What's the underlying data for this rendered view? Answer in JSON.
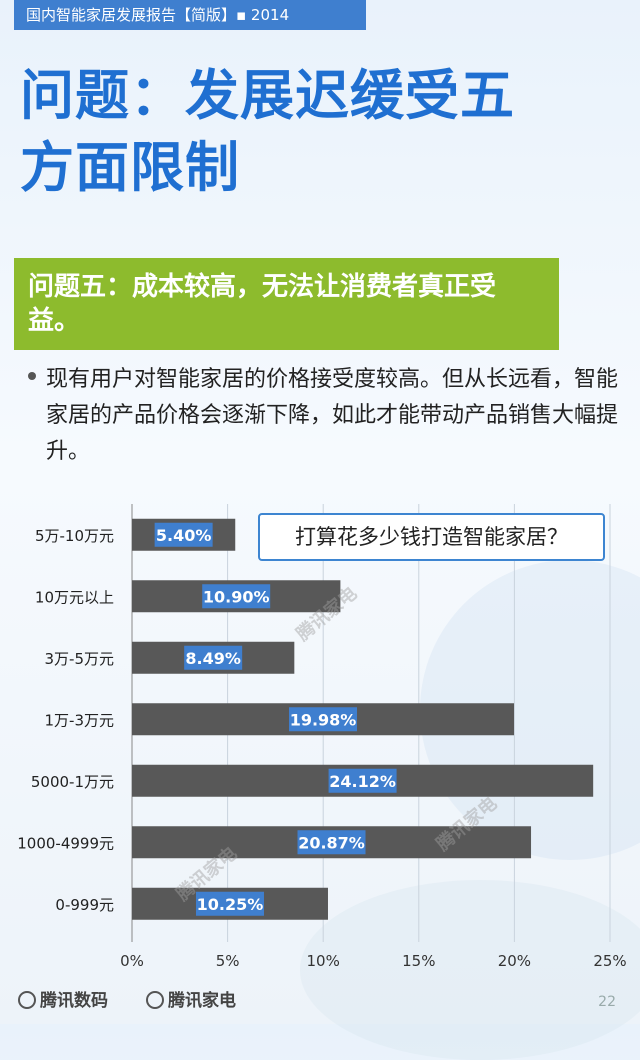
{
  "header": {
    "report_title": "国内智能家居发展报告【简版】▪ 2014"
  },
  "title": {
    "line1": "问题：发展迟缓受五",
    "line2": "方面限制"
  },
  "issue": {
    "text": "问题五：成本较高，无法让消费者真正受益。"
  },
  "bullet": {
    "text": "现有用户对智能家居的价格接受度较高。但从长远看，智能家居的产品价格会逐渐下降，如此才能带动产品销售大幅提升。"
  },
  "chart_data": {
    "type": "bar",
    "orientation": "horizontal",
    "title": "打算花多少钱打造智能家居？",
    "categories": [
      "5万-10万元",
      "10万元以上",
      "3万-5万元",
      "1万-3万元",
      "5000-1万元",
      "1000-4999元",
      "0-999元"
    ],
    "values": [
      5.4,
      10.9,
      8.49,
      19.98,
      24.12,
      20.87,
      10.25
    ],
    "value_labels": [
      "5.40%",
      "10.90%",
      "8.49%",
      "19.98%",
      "24.12%",
      "20.87%",
      "10.25%"
    ],
    "xlim": [
      0,
      25
    ],
    "xticks": [
      "0%",
      "5%",
      "10%",
      "15%",
      "20%",
      "25%"
    ],
    "grid": true,
    "bar_color": "#585858",
    "label_bg_color": "#3f7fcf"
  },
  "footer": {
    "logo1": "腾讯数码",
    "logo2": "腾讯家电",
    "page": "22"
  },
  "watermarks": [
    "腾讯家电",
    "腾讯家电",
    "腾讯家电"
  ],
  "colors": {
    "accent": "#1f6fd1",
    "green": "#8dbb2d",
    "header": "#3f7fcf"
  }
}
